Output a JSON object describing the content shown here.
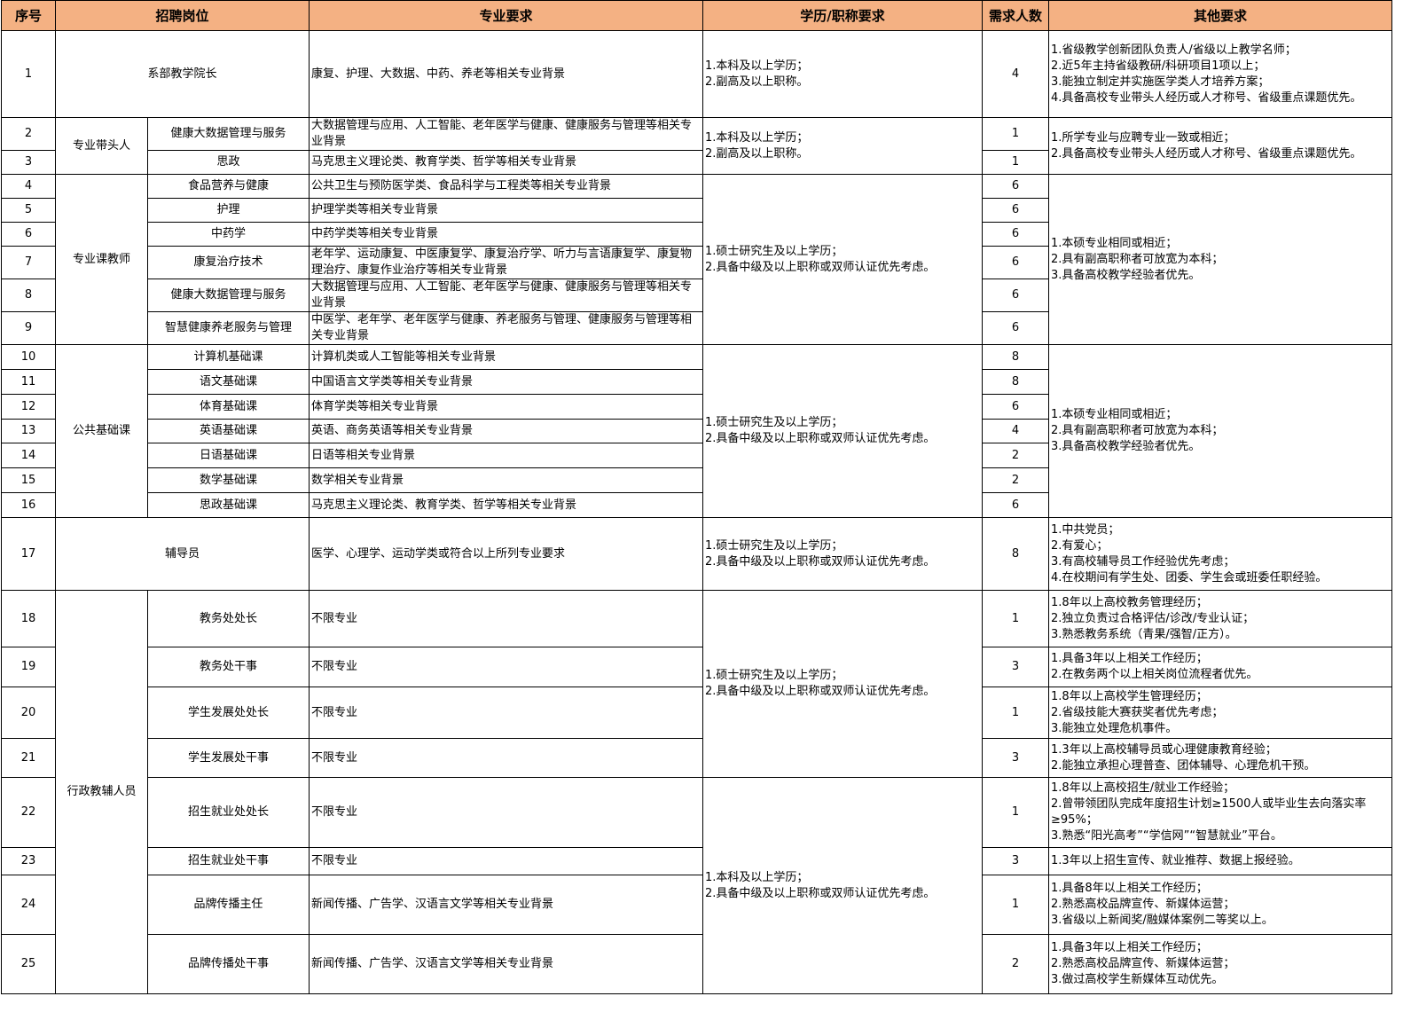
{
  "header": {
    "colors": {
      "header_bg": "#F4B183"
    },
    "columns": [
      "序号",
      "招聘岗位",
      "专业要求",
      "学历/职称要求",
      "需求人数",
      "其他要求"
    ]
  },
  "rows": [
    {
      "no": "1",
      "category": "系部教学院长",
      "position": "",
      "major": "康复、护理、大数据、中药、养老等相关专业背景",
      "count": "4"
    },
    {
      "no": "2",
      "category": "专业带头人",
      "position": "健康大数据管理与服务",
      "major": "大数据管理与应用、人工智能、老年医学与健康、健康服务与管理等相关专业背景",
      "count": "1"
    },
    {
      "no": "3",
      "category": "",
      "position": "思政",
      "major": "马克思主义理论类、教育学类、哲学等相关专业背景",
      "count": "1"
    },
    {
      "no": "4",
      "category": "专业课教师",
      "position": "食品营养与健康",
      "major": "公共卫生与预防医学类、食品科学与工程类等相关专业背景",
      "count": "6"
    },
    {
      "no": "5",
      "category": "",
      "position": "护理",
      "major": "护理学类等相关专业背景",
      "count": "6"
    },
    {
      "no": "6",
      "category": "",
      "position": "中药学",
      "major": "中药学类等相关专业背景",
      "count": "6"
    },
    {
      "no": "7",
      "category": "",
      "position": "康复治疗技术",
      "major": "老年学、运动康复、中医康复学、康复治疗学、听力与言语康复学、康复物理治疗、康复作业治疗等相关专业背景",
      "count": "6"
    },
    {
      "no": "8",
      "category": "",
      "position": "健康大数据管理与服务",
      "major": "大数据管理与应用、人工智能、老年医学与健康、健康服务与管理等相关专业背景",
      "count": "6"
    },
    {
      "no": "9",
      "category": "",
      "position": "智慧健康养老服务与管理",
      "major": "中医学、老年学、老年医学与健康、养老服务与管理、健康服务与管理等相关专业背景",
      "count": "6"
    },
    {
      "no": "10",
      "category": "公共基础课",
      "position": "计算机基础课",
      "major": "计算机类或人工智能等相关专业背景",
      "count": "8"
    },
    {
      "no": "11",
      "category": "",
      "position": "语文基础课",
      "major": "中国语言文学类等相关专业背景",
      "count": "8"
    },
    {
      "no": "12",
      "category": "",
      "position": "体育基础课",
      "major": "体育学类等相关专业背景",
      "count": "6"
    },
    {
      "no": "13",
      "category": "",
      "position": "英语基础课",
      "major": "英语、商务英语等相关专业背景",
      "count": "4"
    },
    {
      "no": "14",
      "category": "",
      "position": "日语基础课",
      "major": "日语等相关专业背景",
      "count": "2"
    },
    {
      "no": "15",
      "category": "",
      "position": "数学基础课",
      "major": "数学相关专业背景",
      "count": "2"
    },
    {
      "no": "16",
      "category": "",
      "position": "思政基础课",
      "major": "马克思主义理论类、教育学类、哲学等相关专业背景",
      "count": "6"
    },
    {
      "no": "17",
      "category": "辅导员",
      "position": "",
      "major": "医学、心理学、运动学类或符合以上所列专业要求",
      "count": "8"
    },
    {
      "no": "18",
      "category": "行政教辅人员",
      "position": "教务处处长",
      "major": "不限专业",
      "count": "1"
    },
    {
      "no": "19",
      "category": "",
      "position": "教务处干事",
      "major": "不限专业",
      "count": "3"
    },
    {
      "no": "20",
      "category": "",
      "position": "学生发展处处长",
      "major": "不限专业",
      "count": "1"
    },
    {
      "no": "21",
      "category": "",
      "position": "学生发展处干事",
      "major": "不限专业",
      "count": "3"
    },
    {
      "no": "22",
      "category": "",
      "position": "招生就业处处长",
      "major": "不限专业",
      "count": "1"
    },
    {
      "no": "23",
      "category": "",
      "position": "招生就业处干事",
      "major": "不限专业",
      "count": "3"
    },
    {
      "no": "24",
      "category": "",
      "position": "品牌传播主任",
      "major": "新闻传播、广告学、汉语言文学等相关专业背景",
      "count": "1"
    },
    {
      "no": "25",
      "category": "",
      "position": "品牌传播处干事",
      "major": "新闻传播、广告学、汉语言文学等相关专业背景",
      "count": "2"
    }
  ],
  "education_groups": [
    {
      "start": 1,
      "span": 1,
      "text": "1.本科及以上学历；\n2.副高及以上职称。"
    },
    {
      "start": 2,
      "span": 2,
      "text": "1.本科及以上学历；\n2.副高及以上职称。"
    },
    {
      "start": 4,
      "span": 6,
      "text": "1.硕士研究生及以上学历；\n2.具备中级及以上职称或双师认证优先考虑。"
    },
    {
      "start": 10,
      "span": 7,
      "text": "1.硕士研究生及以上学历；\n2.具备中级及以上职称或双师认证优先考虑。"
    },
    {
      "start": 17,
      "span": 1,
      "text": "1.硕士研究生及以上学历；\n2.具备中级及以上职称或双师认证优先考虑。"
    },
    {
      "start": 18,
      "span": 4,
      "text": "1.硕士研究生及以上学历；\n2.具备中级及以上职称或双师认证优先考虑。"
    },
    {
      "start": 22,
      "span": 4,
      "text": "1.本科及以上学历；\n2.具备中级及以上职称或双师认证优先考虑。"
    }
  ],
  "other_groups": [
    {
      "start": 1,
      "span": 1,
      "text": "1.省级教学创新团队负责人/省级以上教学名师；\n2.近5年主持省级教研/科研项目1项以上；\n3.能独立制定并实施医学类人才培养方案；\n4.具备高校专业带头人经历或人才称号、省级重点课题优先。"
    },
    {
      "start": 2,
      "span": 2,
      "text": "1.所学专业与应聘专业一致或相近；\n2.具备高校专业带头人经历或人才称号、省级重点课题优先。"
    },
    {
      "start": 4,
      "span": 6,
      "text": "1.本硕专业相同或相近；\n2.具有副高职称者可放宽为本科；\n3.具备高校教学经验者优先。"
    },
    {
      "start": 10,
      "span": 7,
      "text": "1.本硕专业相同或相近；\n2.具有副高职称者可放宽为本科；\n3.具备高校教学经验者优先。"
    },
    {
      "start": 17,
      "span": 1,
      "text": "1.中共党员；\n2.有爱心；\n3.有高校辅导员工作经验优先考虑；\n4.在校期间有学生处、团委、学生会或班委任职经验。"
    },
    {
      "start": 18,
      "span": 1,
      "text": "1.8年以上高校教务管理经历；\n2.独立负责过合格评估/诊改/专业认证；\n3.熟悉教务系统（青果/强智/正方）。"
    },
    {
      "start": 19,
      "span": 1,
      "text": "1.具备3年以上相关工作经历；\n2.在教务两个以上相关岗位流程者优先。"
    },
    {
      "start": 20,
      "span": 1,
      "text": "1.8年以上高校学生管理经历；\n2.省级技能大赛获奖者优先考虑；\n3.能独立处理危机事件。"
    },
    {
      "start": 21,
      "span": 1,
      "text": "1.3年以上高校辅导员或心理健康教育经验；\n2.能独立承担心理普查、团体辅导、心理危机干预。"
    },
    {
      "start": 22,
      "span": 1,
      "text": "1.8年以上高校招生/就业工作经验；\n2.曾带领团队完成年度招生计划≥1500人或毕业生去向落实率≥95%；\n3.熟悉“阳光高考”“学信网”“智慧就业”平台。"
    },
    {
      "start": 23,
      "span": 1,
      "text": "1.3年以上招生宣传、就业推荐、数据上报经验。"
    },
    {
      "start": 24,
      "span": 1,
      "text": "1.具备8年以上相关工作经历；\n2.熟悉高校品牌宣传、新媒体运营；\n3.省级以上新闻奖/融媒体案例二等奖以上。"
    },
    {
      "start": 25,
      "span": 1,
      "text": "1.具备3年以上相关工作经历；\n2.熟悉高校品牌宣传、新媒体运营；\n3.做过高校学生新媒体互动优先。"
    }
  ]
}
